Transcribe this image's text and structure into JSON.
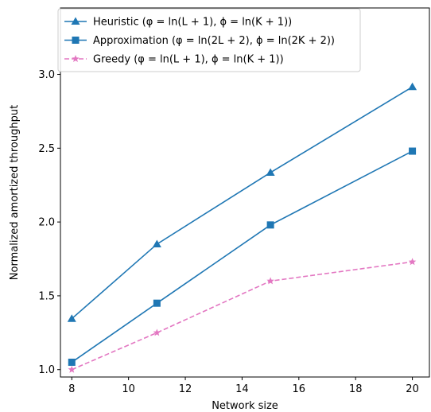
{
  "chart_data": {
    "type": "line",
    "xlabel": "Network size",
    "ylabel": "Normalized amortized throughput",
    "xlim": [
      7.6,
      20.6
    ],
    "ylim": [
      0.95,
      3.45
    ],
    "xticks": [
      8,
      10,
      12,
      14,
      16,
      18,
      20
    ],
    "yticks": [
      1.0,
      1.5,
      2.0,
      2.5,
      3.0
    ],
    "xtick_labels": [
      "8",
      "10",
      "12",
      "14",
      "16",
      "18",
      "20"
    ],
    "ytick_labels": [
      "1.0",
      "1.5",
      "2.0",
      "2.5",
      "3.0"
    ],
    "grid": false,
    "legend_position": "top-left",
    "x": [
      8,
      11,
      15,
      20
    ],
    "series": [
      {
        "name": "Heuristic (φ = ln(L + 1), ϕ = ln(K + 1))",
        "values": [
          1.345,
          1.85,
          2.335,
          2.915
        ],
        "color": "#1f77b4",
        "marker": "triangle",
        "linestyle": "solid"
      },
      {
        "name": "Approximation (φ = ln(2L + 2), ϕ = ln(2K + 2))",
        "values": [
          1.05,
          1.45,
          1.98,
          2.48
        ],
        "color": "#1f77b4",
        "marker": "square",
        "linestyle": "solid"
      },
      {
        "name": "Greedy (φ = ln(L + 1), ϕ = ln(K + 1))",
        "values": [
          1.0,
          1.25,
          1.6,
          1.73
        ],
        "color": "#e377c2",
        "marker": "star",
        "linestyle": "dashed"
      }
    ]
  }
}
